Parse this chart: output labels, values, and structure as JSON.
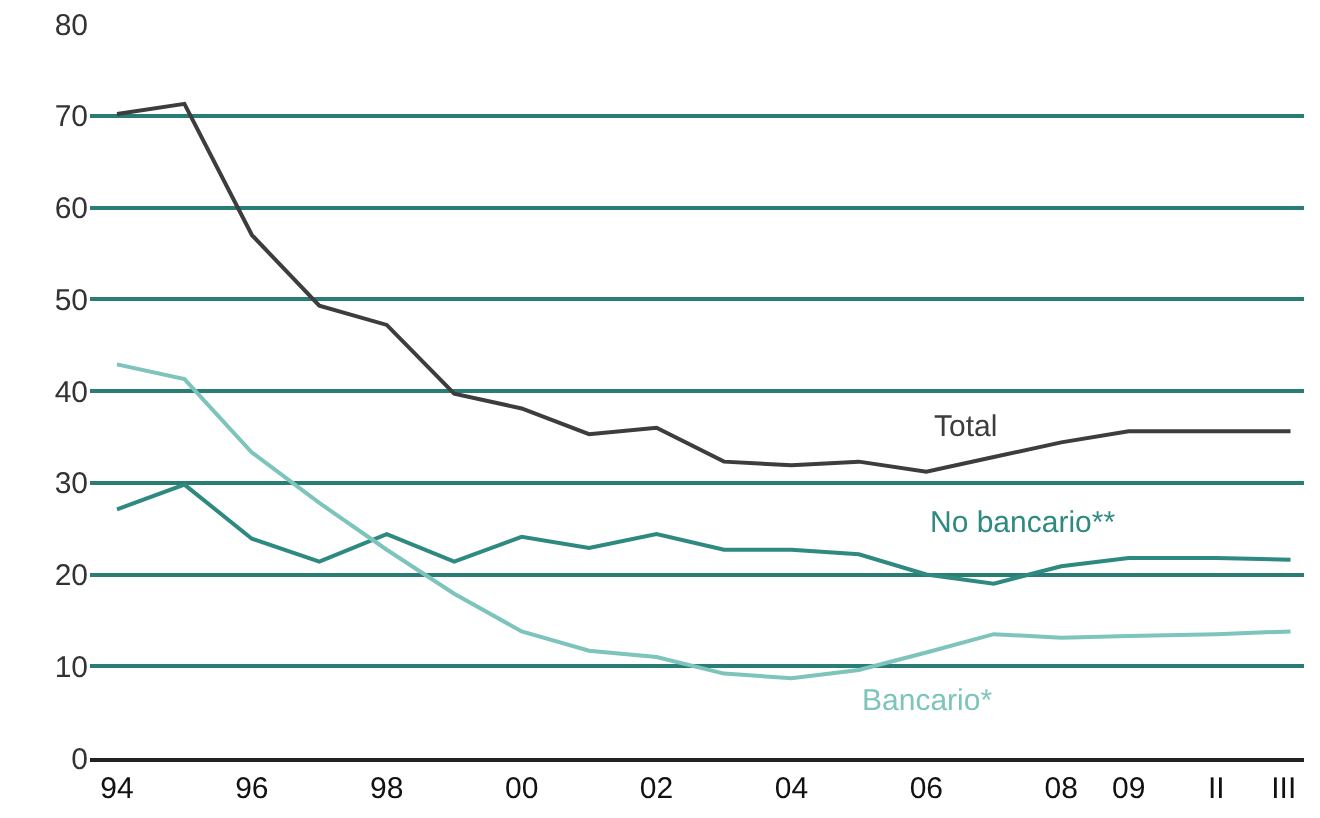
{
  "chart_data": {
    "type": "line",
    "x": [
      1994,
      1995,
      1996,
      1997,
      1998,
      1999,
      2000,
      2001,
      2002,
      2003,
      2004,
      2005,
      2006,
      2007,
      2008,
      2009,
      2010.3,
      2011.4
    ],
    "series": [
      {
        "name": "Total",
        "color": "#3d3d3d",
        "values": [
          70.2,
          71.3,
          57,
          49.3,
          47.2,
          39.7,
          38.1,
          35.3,
          36,
          32.3,
          31.9,
          32.3,
          31.2,
          32.8,
          34.4,
          35.6,
          35.6,
          35.6
        ]
      },
      {
        "name": "No bancario**",
        "color": "#2e8a80",
        "values": [
          27.1,
          29.8,
          23.9,
          21.4,
          24.4,
          21.4,
          24.1,
          22.9,
          24.4,
          22.7,
          22.7,
          22.2,
          20,
          19,
          20.9,
          21.8,
          21.8,
          21.6
        ]
      },
      {
        "name": "Bancario*",
        "color": "#7cc4bc",
        "values": [
          42.9,
          41.3,
          33.3,
          27.8,
          22.7,
          17.9,
          13.8,
          11.7,
          11,
          9.2,
          8.7,
          9.6,
          11.5,
          13.5,
          13.1,
          13.3,
          13.5,
          13.8
        ]
      }
    ],
    "xlim": [
      1993.6,
      2011.6
    ],
    "xticks": [
      {
        "value": 1994,
        "label": "94"
      },
      {
        "value": 1996,
        "label": "96"
      },
      {
        "value": 1998,
        "label": "98"
      },
      {
        "value": 2000,
        "label": "00"
      },
      {
        "value": 2002,
        "label": "02"
      },
      {
        "value": 2004,
        "label": "04"
      },
      {
        "value": 2006,
        "label": "06"
      },
      {
        "value": 2008,
        "label": "08"
      },
      {
        "value": 2009,
        "label": "09"
      },
      {
        "value": 2010.3,
        "label": "II"
      },
      {
        "value": 2011.3,
        "label": "III"
      }
    ],
    "ylim": [
      0,
      80
    ],
    "yticks": [
      0,
      10,
      20,
      30,
      40,
      50,
      60,
      70,
      80
    ],
    "grid": "y",
    "legend": false,
    "marker": "none",
    "line_style": "solid"
  }
}
